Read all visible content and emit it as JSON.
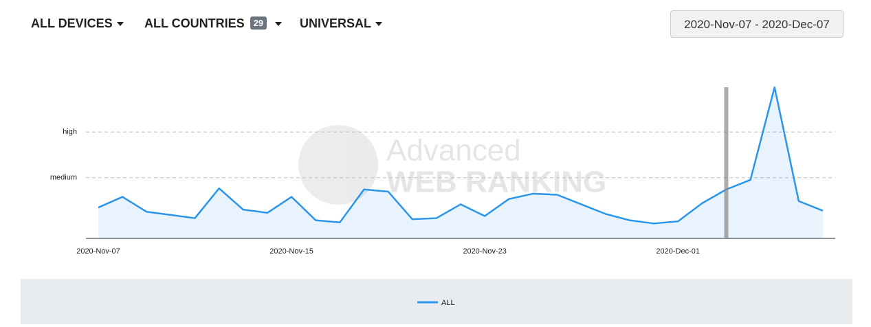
{
  "toolbar": {
    "devices": "ALL DEVICES",
    "countries": "ALL COUNTRIES",
    "countries_count": "29",
    "search_engine": "UNIVERSAL",
    "date_range": "2020-Nov-07 - 2020-Dec-07"
  },
  "watermark": {
    "line1": "Advanced",
    "line2": "WEB RANKING"
  },
  "chart_data": {
    "type": "line",
    "categories": [
      "2020-Nov-07",
      null,
      null,
      null,
      null,
      null,
      null,
      null,
      "2020-Nov-15",
      null,
      null,
      null,
      null,
      null,
      null,
      null,
      "2020-Nov-23",
      null,
      null,
      null,
      null,
      null,
      null,
      null,
      "2020-Dec-01",
      null,
      null,
      null,
      null,
      null,
      null
    ],
    "series": [
      {
        "name": "ALL",
        "color": "#2b95e9",
        "values": [
          29,
          39,
          25,
          22,
          19,
          47,
          27,
          24,
          39,
          17,
          15,
          46,
          44,
          18,
          19,
          32,
          21,
          37,
          42,
          41,
          32,
          23,
          17,
          14,
          16,
          33,
          46,
          55,
          142,
          35,
          26
        ]
      }
    ],
    "ylim": [
      0,
      142
    ],
    "yticks": [
      {
        "value": 57,
        "label": "medium"
      },
      {
        "value": 100,
        "label": "high"
      }
    ],
    "grid": true
  }
}
